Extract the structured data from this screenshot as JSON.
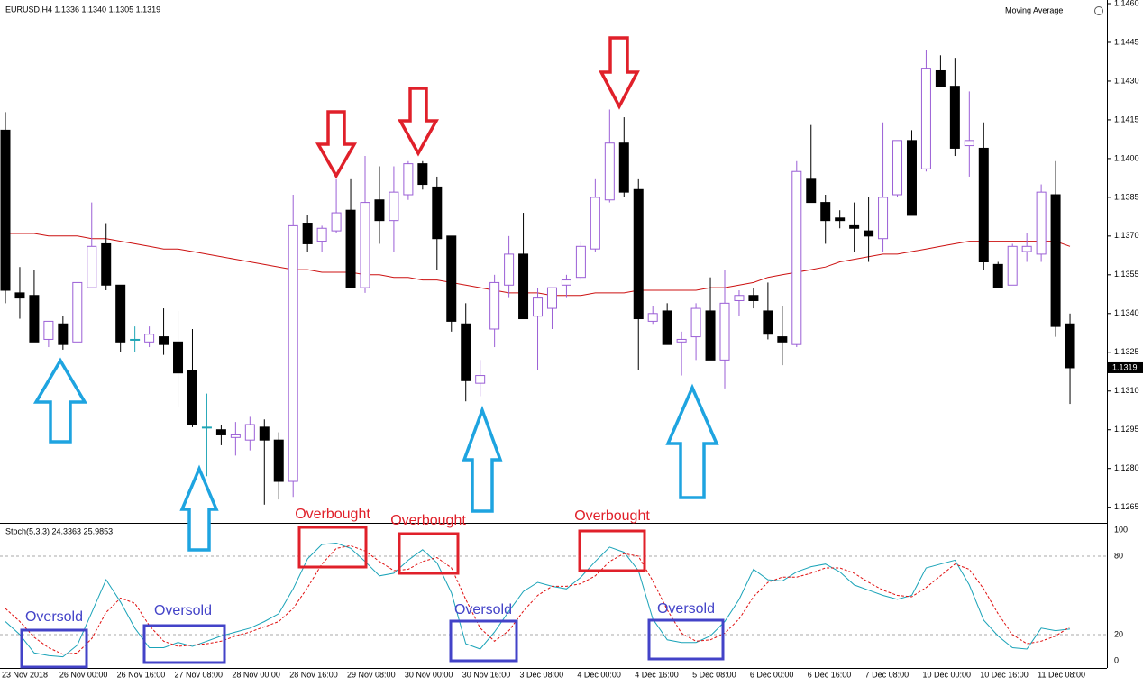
{
  "chart_data": [
    {
      "type": "candlestick",
      "title": "EURUSD,H4  1.1336 1.1340 1.1305 1.1319",
      "categories": [
        "23 Nov 2018",
        null,
        null,
        null,
        "26 Nov 00:00",
        null,
        null,
        null,
        "26 Nov 16:00",
        null,
        null,
        null,
        "27 Nov 08:00",
        null,
        null,
        null,
        "28 Nov 00:00",
        null,
        null,
        null,
        "28 Nov 16:00",
        null,
        null,
        null,
        "29 Nov 08:00",
        null,
        null,
        null,
        "30 Nov 00:00",
        null,
        null,
        null,
        "30 Nov 16:00",
        null,
        null,
        null,
        "3 Dec 08:00",
        null,
        null,
        null,
        "4 Dec 00:00",
        null,
        null,
        null,
        "4 Dec 16:00",
        null,
        null,
        null,
        "5 Dec 08:00",
        null,
        null,
        null,
        "6 Dec 00:00",
        null,
        null,
        null,
        "6 Dec 16:00",
        null,
        null,
        null,
        "7 Dec 08:00",
        null,
        null,
        null,
        "10 Dec 00:00",
        null,
        null,
        null,
        "10 Dec 16:00",
        null,
        null,
        null,
        "11 Dec 08:00",
        null,
        null
      ],
      "open": [
        1.1411,
        1.1348,
        1.1347,
        1.133,
        1.1336,
        1.1329,
        1.135,
        1.1367,
        1.1351,
        1.133,
        1.1329,
        1.1331,
        1.1329,
        1.1318,
        1.1296,
        1.1295,
        1.1292,
        1.1291,
        1.1296,
        1.1291,
        1.1275,
        1.1375,
        1.1368,
        1.1372,
        1.138,
        1.135,
        1.1384,
        1.1376,
        1.1386,
        1.1398,
        1.1389,
        1.137,
        1.1336,
        1.1313,
        1.1334,
        1.1351,
        1.1363,
        1.1339,
        1.1342,
        1.1351,
        1.1354,
        1.1365,
        1.1384,
        1.1406,
        1.1388,
        1.1337,
        1.1341,
        1.1329,
        1.1331,
        1.1341,
        1.1322,
        1.1345,
        1.1347,
        1.1341,
        1.1331,
        1.1328,
        1.1392,
        1.1383,
        1.1377,
        1.1374,
        1.1372,
        1.1369,
        1.1386,
        1.1407,
        1.1396,
        1.1434,
        1.1428,
        1.1405,
        1.1404,
        1.1359,
        1.1351,
        1.1364,
        1.1363,
        1.1386,
        1.1336
      ],
      "high": [
        1.1418,
        1.1358,
        1.1357,
        1.1337,
        1.1339,
        1.1352,
        1.1383,
        1.1375,
        1.1351,
        1.1335,
        1.1335,
        1.1342,
        1.1341,
        1.1334,
        1.1309,
        1.1297,
        1.1298,
        1.13,
        1.1299,
        1.1294,
        1.1386,
        1.1378,
        1.1374,
        1.1392,
        1.1392,
        1.1401,
        1.1397,
        1.1397,
        1.1399,
        1.1399,
        1.1393,
        1.137,
        1.1344,
        1.1322,
        1.1355,
        1.137,
        1.1379,
        1.135,
        1.135,
        1.1355,
        1.1368,
        1.1392,
        1.1419,
        1.1416,
        1.1392,
        1.1343,
        1.1344,
        1.1333,
        1.1344,
        1.1354,
        1.1357,
        1.1349,
        1.135,
        1.1352,
        1.1343,
        1.1399,
        1.1413,
        1.1386,
        1.138,
        1.1383,
        1.1385,
        1.1414,
        1.1407,
        1.1411,
        1.1442,
        1.144,
        1.1439,
        1.1426,
        1.1414,
        1.136,
        1.1367,
        1.1371,
        1.139,
        1.1399,
        1.134
      ],
      "low": [
        1.1344,
        1.1338,
        1.1329,
        1.1327,
        1.1326,
        1.1329,
        1.135,
        1.1349,
        1.1325,
        1.1325,
        1.1327,
        1.1324,
        1.1304,
        1.1296,
        1.1277,
        1.1289,
        1.1285,
        1.1287,
        1.1266,
        1.1268,
        1.1269,
        1.1364,
        1.1364,
        1.1371,
        1.135,
        1.1348,
        1.1367,
        1.1364,
        1.1384,
        1.1388,
        1.1357,
        1.1333,
        1.1306,
        1.1308,
        1.1327,
        1.1346,
        1.1338,
        1.1318,
        1.1334,
        1.1346,
        1.1353,
        1.1364,
        1.1383,
        1.1385,
        1.1318,
        1.1336,
        1.1328,
        1.1316,
        1.1322,
        1.1322,
        1.1311,
        1.1339,
        1.1342,
        1.133,
        1.132,
        1.1327,
        1.1383,
        1.1367,
        1.1373,
        1.1364,
        1.136,
        1.1364,
        1.1385,
        1.1378,
        1.1395,
        1.1428,
        1.1401,
        1.1393,
        1.1357,
        1.135,
        1.1351,
        1.136,
        1.136,
        1.1331,
        1.1305
      ],
      "close": [
        1.1349,
        1.1346,
        1.1329,
        1.1337,
        1.1328,
        1.1352,
        1.1366,
        1.1351,
        1.1329,
        1.133,
        1.1332,
        1.1328,
        1.1317,
        1.1297,
        1.1296,
        1.1293,
        1.1293,
        1.1297,
        1.1291,
        1.1275,
        1.1374,
        1.1367,
        1.1373,
        1.1379,
        1.135,
        1.1383,
        1.1376,
        1.1387,
        1.1398,
        1.139,
        1.1369,
        1.1337,
        1.1314,
        1.1316,
        1.1352,
        1.1363,
        1.1338,
        1.1346,
        1.135,
        1.1353,
        1.1366,
        1.1385,
        1.1406,
        1.1387,
        1.1338,
        1.134,
        1.1328,
        1.133,
        1.1342,
        1.1322,
        1.1344,
        1.1347,
        1.1345,
        1.1332,
        1.1329,
        1.1395,
        1.1383,
        1.1376,
        1.1376,
        1.1373,
        1.137,
        1.1385,
        1.1407,
        1.1378,
        1.1435,
        1.1428,
        1.1404,
        1.1407,
        1.136,
        1.135,
        1.1366,
        1.1366,
        1.1387,
        1.1335,
        1.1319
      ],
      "up_color": "#ffffff",
      "up_line": "#9b5fd6",
      "down_color": "#000000",
      "doji_color": "#1fa5b5",
      "series": [
        {
          "name": "Moving Average",
          "color": "#cc1111",
          "values": [
            1.1371,
            1.1371,
            1.1371,
            1.137,
            1.137,
            1.137,
            1.1369,
            1.1369,
            1.1368,
            1.1367,
            1.1366,
            1.1365,
            1.1365,
            1.1364,
            1.1363,
            1.1362,
            1.1361,
            1.136,
            1.1359,
            1.1358,
            1.1357,
            1.1357,
            1.1356,
            1.1356,
            1.1356,
            1.1355,
            1.1355,
            1.1354,
            1.1354,
            1.1353,
            1.1353,
            1.1352,
            1.1351,
            1.135,
            1.1349,
            1.1348,
            1.1348,
            1.1348,
            1.1347,
            1.1347,
            1.1347,
            1.1348,
            1.1348,
            1.1348,
            1.1349,
            1.1349,
            1.1349,
            1.1349,
            1.1349,
            1.135,
            1.135,
            1.1351,
            1.1352,
            1.1354,
            1.1355,
            1.1356,
            1.1357,
            1.1358,
            1.136,
            1.1361,
            1.1362,
            1.1363,
            1.1363,
            1.1364,
            1.1365,
            1.1366,
            1.1367,
            1.1368,
            1.1368,
            1.1368,
            1.1368,
            1.1368,
            1.1368,
            1.1368,
            1.1366
          ]
        }
      ],
      "ylim": [
        1.126,
        1.146
      ],
      "yticks": [
        {
          "value": 1.146,
          "label": "1.1460"
        },
        1.1445,
        {
          "value": 1.143,
          "label": "1.1430"
        },
        1.1415,
        {
          "value": 1.14,
          "label": "1.1400"
        },
        1.1385,
        {
          "value": 1.137,
          "label": "1.1370"
        },
        1.1355,
        {
          "value": 1.134,
          "label": "1.1340"
        },
        1.1325,
        {
          "value": 1.131,
          "label": "1.1310"
        },
        1.1295,
        {
          "value": 1.128,
          "label": "1.1280"
        },
        1.1265
      ]
    },
    {
      "type": "stochastic",
      "title": "Stoch(5,3,3) 24.3363 25.9853",
      "series": [
        {
          "color": "#1aa3b8",
          "dash": false,
          "values": [
            30,
            20,
            6,
            4,
            3,
            12,
            37,
            62,
            45,
            25,
            10,
            10,
            14,
            11,
            15,
            19,
            22,
            25,
            30,
            36,
            55,
            78,
            89,
            90,
            86,
            76,
            65,
            67,
            77,
            85,
            75,
            52,
            13,
            9,
            22,
            38,
            53,
            60,
            57,
            55,
            64,
            76,
            87,
            83,
            69,
            32,
            16,
            14,
            14,
            19,
            30,
            47,
            70,
            62,
            61,
            68,
            72,
            74,
            68,
            58,
            54,
            50,
            47,
            50,
            71,
            74,
            77,
            58,
            31,
            19,
            10,
            9,
            25,
            23,
            24.3363
          ]
        },
        {
          "color": "#e01010",
          "dash": true,
          "values": [
            40,
            30,
            18,
            10,
            5,
            6,
            17,
            37,
            48,
            44,
            27,
            15,
            11,
            12,
            13,
            15,
            19,
            22,
            26,
            30,
            40,
            56,
            74,
            86,
            88,
            84,
            76,
            69,
            70,
            76,
            79,
            71,
            47,
            25,
            15,
            23,
            38,
            50,
            57,
            57,
            59,
            65,
            76,
            82,
            80,
            61,
            39,
            21,
            15,
            16,
            21,
            32,
            49,
            60,
            64,
            64,
            67,
            71,
            71,
            67,
            60,
            54,
            50,
            49,
            56,
            65,
            74,
            70,
            55,
            36,
            20,
            13,
            15,
            19,
            25.9853
          ]
        }
      ],
      "ylim": [
        0,
        100
      ],
      "yticks": [
        0,
        20,
        80,
        100
      ]
    },
    {
      "annotations": [
        "Overbought",
        "Overbought",
        "Overbought",
        "Oversold",
        "Oversold",
        "Oversold",
        "Oversold"
      ]
    }
  ]
}
